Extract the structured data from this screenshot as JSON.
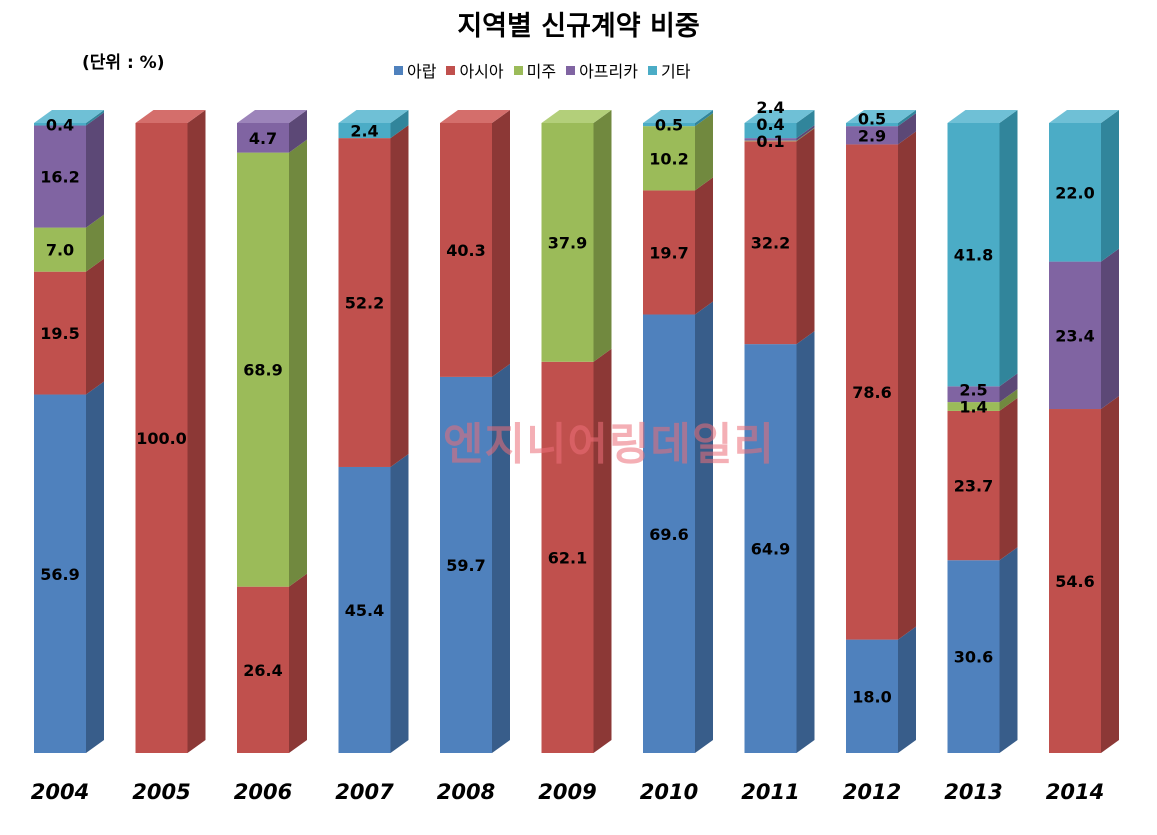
{
  "chart_data": {
    "type": "bar",
    "stacked": true,
    "percent_stacked": true,
    "three_d": true,
    "title": "지역별 신규계약 비중",
    "unit_label": "(단위 : %)",
    "categories": [
      "2004",
      "2005",
      "2006",
      "2007",
      "2008",
      "2009",
      "2010",
      "2011",
      "2012",
      "2013",
      "2014"
    ],
    "series": [
      {
        "name": "아랍",
        "color": "#4F81BD",
        "side": "#385D8A",
        "top": "#6E9AD1",
        "values": [
          56.9,
          0,
          0,
          45.4,
          59.7,
          0,
          69.6,
          64.9,
          18.0,
          30.6,
          0
        ]
      },
      {
        "name": "아시아",
        "color": "#C0504D",
        "side": "#8C3836",
        "top": "#D46E6B",
        "values": [
          19.5,
          100.0,
          26.4,
          52.2,
          40.3,
          62.1,
          19.7,
          32.2,
          78.6,
          23.7,
          54.6
        ]
      },
      {
        "name": "미주",
        "color": "#9BBB59",
        "side": "#71893F",
        "top": "#B3CF7A",
        "values": [
          7.0,
          0,
          68.9,
          0,
          0,
          37.9,
          10.2,
          0.1,
          0,
          1.4,
          0
        ]
      },
      {
        "name": "아프리카",
        "color": "#8064A2",
        "side": "#5C4876",
        "top": "#9C84BA",
        "values": [
          16.2,
          0,
          4.7,
          0,
          0,
          0,
          0,
          0.4,
          2.9,
          2.5,
          23.4
        ]
      },
      {
        "name": "기타",
        "color": "#4BACC6",
        "side": "#31859B",
        "top": "#6FC0D6",
        "values": [
          0.4,
          0,
          0,
          2.4,
          0,
          0,
          0.5,
          2.4,
          0.5,
          41.8,
          22.0
        ]
      }
    ],
    "data_labels": [
      {
        "cat": 0,
        "text": "56.9"
      },
      {
        "cat": 0,
        "text": "19.5"
      },
      {
        "cat": 0,
        "text": "7.0"
      },
      {
        "cat": 0,
        "text": "16.2"
      },
      {
        "cat": 0,
        "text": "0.4"
      },
      {
        "cat": 1,
        "text": "100.0"
      },
      {
        "cat": 2,
        "text": "26.4"
      },
      {
        "cat": 2,
        "text": "68.9"
      },
      {
        "cat": 2,
        "text": "4.7"
      },
      {
        "cat": 3,
        "text": "45.4"
      },
      {
        "cat": 3,
        "text": "52.2"
      },
      {
        "cat": 3,
        "text": "2.4"
      },
      {
        "cat": 4,
        "text": "59.7"
      },
      {
        "cat": 4,
        "text": "40.3"
      },
      {
        "cat": 5,
        "text": "62.1"
      },
      {
        "cat": 5,
        "text": "37.9"
      },
      {
        "cat": 6,
        "text": "69.6"
      },
      {
        "cat": 6,
        "text": "19.7"
      },
      {
        "cat": 6,
        "text": "10.2"
      },
      {
        "cat": 6,
        "text": "0.5"
      },
      {
        "cat": 7,
        "text": "64.9"
      },
      {
        "cat": 7,
        "text": "32.2"
      },
      {
        "cat": 7,
        "text": "0.1"
      },
      {
        "cat": 7,
        "text": "0.4"
      },
      {
        "cat": 7,
        "text": "2.4"
      },
      {
        "cat": 8,
        "text": "18.0"
      },
      {
        "cat": 8,
        "text": "78.6"
      },
      {
        "cat": 8,
        "text": "2.9"
      },
      {
        "cat": 8,
        "text": "0.5"
      },
      {
        "cat": 9,
        "text": "30.6"
      },
      {
        "cat": 9,
        "text": "23.7"
      },
      {
        "cat": 9,
        "text": "1.4"
      },
      {
        "cat": 9,
        "text": "2.5"
      },
      {
        "cat": 9,
        "text": "41.8"
      },
      {
        "cat": 10,
        "text": "54.6"
      },
      {
        "cat": 10,
        "text": "23.4"
      },
      {
        "cat": 10,
        "text": "22.0"
      }
    ],
    "ylim": [
      0,
      100
    ],
    "grid": false,
    "legend_position": "top"
  },
  "watermark": "엔지니어링데일리"
}
